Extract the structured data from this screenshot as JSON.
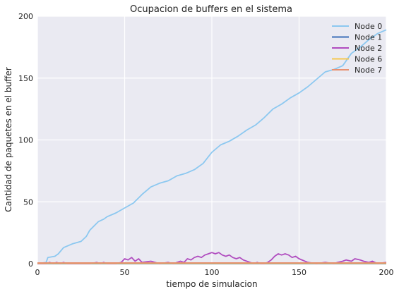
{
  "chart_data": {
    "type": "line",
    "title": "Ocupacion de buffers en el sistema",
    "xlabel": "tiempo de simulacion",
    "ylabel": "Cantidad de paquetes en el buffer",
    "xlim": [
      0,
      200
    ],
    "ylim": [
      0,
      200
    ],
    "xticks": [
      0,
      50,
      100,
      150,
      200
    ],
    "yticks": [
      0,
      50,
      100,
      150,
      200
    ],
    "grid": true,
    "legend": "top-right",
    "series": [
      {
        "name": "Node 0",
        "color": "#8cc8f0",
        "x": [
          0,
          5,
          6,
          10,
          12,
          15,
          20,
          25,
          28,
          30,
          35,
          38,
          40,
          45,
          50,
          55,
          60,
          65,
          70,
          75,
          80,
          85,
          90,
          95,
          100,
          105,
          110,
          115,
          120,
          125,
          130,
          135,
          140,
          145,
          150,
          155,
          160,
          165,
          170,
          175,
          180,
          185,
          190,
          195,
          200
        ],
        "y": [
          0,
          1,
          5,
          6,
          8,
          13,
          16,
          18,
          22,
          27,
          34,
          36,
          38,
          41,
          45,
          49,
          56,
          62,
          65,
          67,
          71,
          73,
          76,
          81,
          90,
          96,
          99,
          103,
          108,
          112,
          118,
          125,
          129,
          134,
          138,
          143,
          149,
          155,
          157,
          160,
          170,
          175,
          181,
          186,
          189
        ]
      },
      {
        "name": "Node 1",
        "color": "#3a6db8",
        "x": [
          0,
          200
        ],
        "y": [
          0,
          0
        ]
      },
      {
        "name": "Node 2",
        "color": "#b04cbf",
        "x": [
          0,
          5,
          7,
          9,
          11,
          13,
          15,
          17,
          20,
          30,
          34,
          36,
          38,
          40,
          45,
          48,
          50,
          52,
          54,
          56,
          58,
          60,
          65,
          70,
          75,
          78,
          80,
          82,
          84,
          86,
          88,
          90,
          92,
          94,
          96,
          98,
          100,
          102,
          104,
          106,
          108,
          110,
          112,
          114,
          116,
          118,
          120,
          122,
          124,
          126,
          128,
          130,
          132,
          134,
          136,
          138,
          140,
          142,
          144,
          146,
          148,
          150,
          155,
          160,
          165,
          170,
          172,
          175,
          177,
          180,
          182,
          185,
          187,
          190,
          192,
          195,
          200
        ],
        "y": [
          0,
          0,
          1,
          0,
          1,
          0,
          1,
          0,
          0,
          0,
          1,
          0,
          1,
          0,
          0,
          1,
          4,
          3,
          5,
          2,
          4,
          1,
          2,
          0,
          1,
          0,
          1,
          2,
          1,
          4,
          3,
          5,
          6,
          5,
          7,
          8,
          9,
          8,
          9,
          7,
          6,
          7,
          5,
          4,
          5,
          3,
          2,
          1,
          0,
          1,
          0,
          0,
          1,
          3,
          6,
          8,
          7,
          8,
          7,
          5,
          6,
          4,
          1,
          0,
          1,
          0,
          1,
          2,
          3,
          2,
          4,
          3,
          2,
          1,
          2,
          0,
          1
        ]
      },
      {
        "name": "Node 6",
        "color": "#f5c850",
        "x": [
          0,
          200
        ],
        "y": [
          0.3,
          0.3
        ]
      },
      {
        "name": "Node 7",
        "color": "#e89070",
        "x": [
          0,
          200
        ],
        "y": [
          0.6,
          0.6
        ]
      }
    ]
  }
}
